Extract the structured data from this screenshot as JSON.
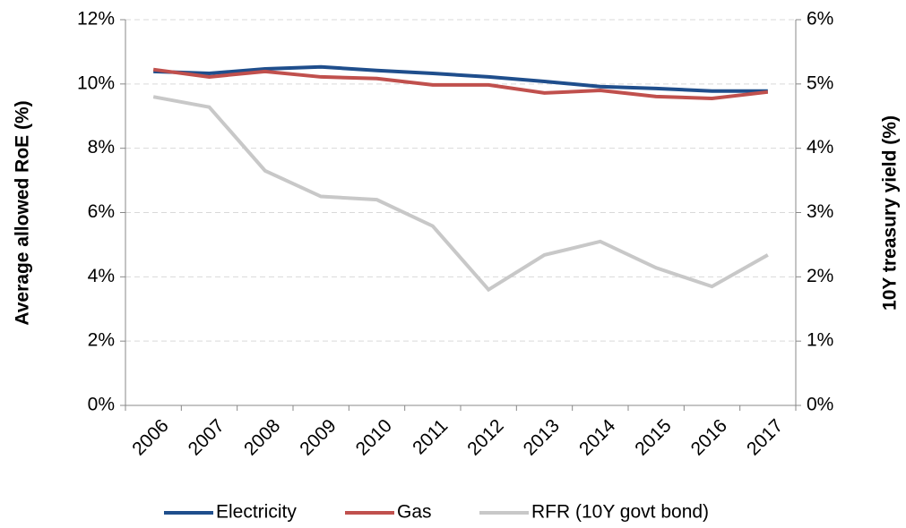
{
  "chart_data": {
    "type": "line",
    "categories": [
      "2006",
      "2007",
      "2008",
      "2009",
      "2010",
      "2011",
      "2012",
      "2013",
      "2014",
      "2015",
      "2016",
      "2017"
    ],
    "y_label": "Average allowed RoE (%)",
    "y2_label": "10Y treasury yield (%)",
    "ylim": [
      0,
      12
    ],
    "yticks": [
      {
        "value": 0,
        "label": "0%"
      },
      {
        "value": 2,
        "label": "2%"
      },
      {
        "value": 4,
        "label": "4%"
      },
      {
        "value": 6,
        "label": "6%"
      },
      {
        "value": 8,
        "label": "8%"
      },
      {
        "value": 10,
        "label": "10%"
      },
      {
        "value": 12,
        "label": "12%"
      }
    ],
    "y2lim": [
      0,
      6
    ],
    "y2ticks": [
      {
        "value": 0,
        "label": "0%"
      },
      {
        "value": 1,
        "label": "1%"
      },
      {
        "value": 2,
        "label": "2%"
      },
      {
        "value": 3,
        "label": "3%"
      },
      {
        "value": 4,
        "label": "4%"
      },
      {
        "value": 5,
        "label": "5%"
      },
      {
        "value": 6,
        "label": "6%"
      }
    ],
    "grid": true,
    "legend": "bottom",
    "series": [
      {
        "name": "Electricity",
        "color": "#1f4e8c",
        "values": [
          10.39,
          10.33,
          10.47,
          10.53,
          10.42,
          10.33,
          10.22,
          10.08,
          9.92,
          9.86,
          9.78,
          9.78
        ]
      },
      {
        "name": "Gas",
        "color": "#c0504d",
        "values": [
          10.45,
          10.22,
          10.39,
          10.22,
          10.17,
          9.97,
          9.97,
          9.72,
          9.8,
          9.61,
          9.55,
          9.75
        ]
      },
      {
        "name": "RFR (10Y govt bond)",
        "color": "#c8c8c8",
        "axis": "y2",
        "values": [
          4.8,
          4.64,
          3.65,
          3.25,
          3.2,
          2.79,
          1.8,
          2.34,
          2.55,
          2.14,
          1.85,
          2.34
        ]
      }
    ]
  }
}
